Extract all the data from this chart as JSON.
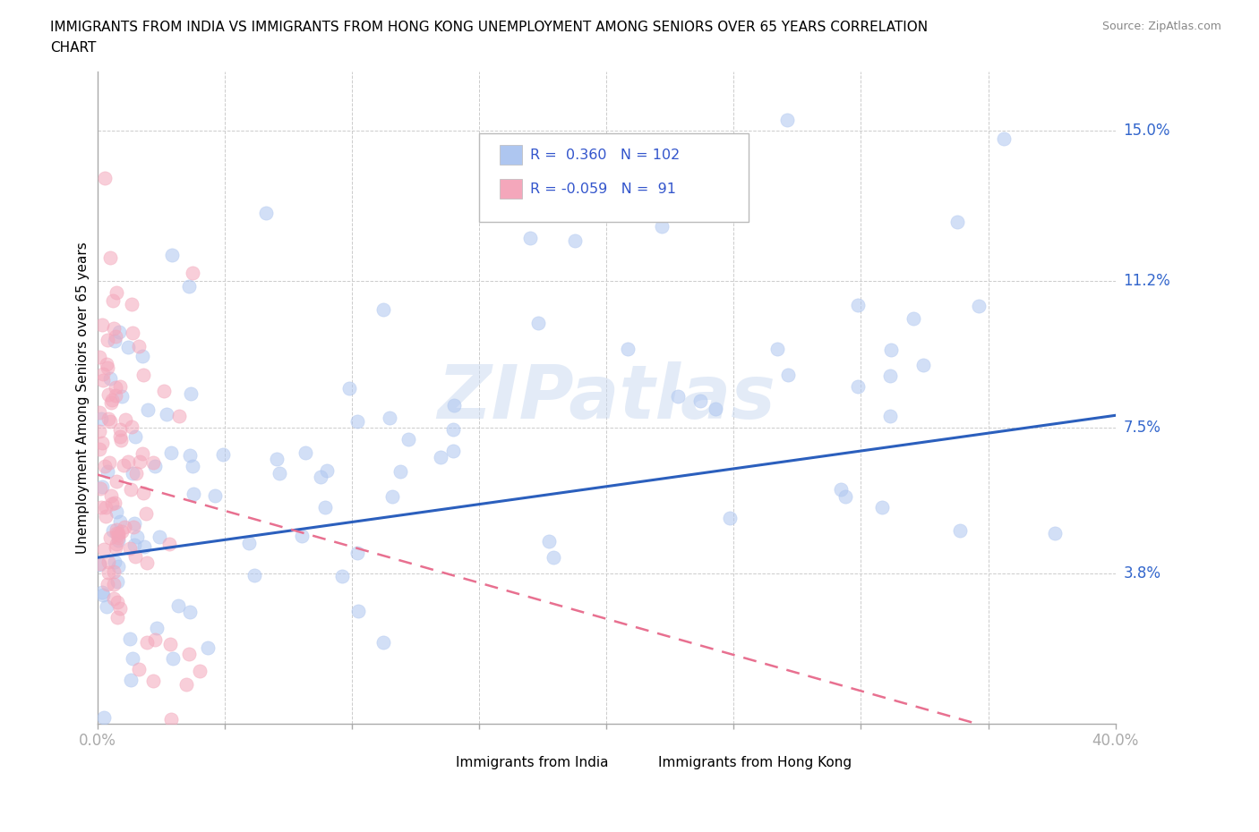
{
  "title_line1": "IMMIGRANTS FROM INDIA VS IMMIGRANTS FROM HONG KONG UNEMPLOYMENT AMONG SENIORS OVER 65 YEARS CORRELATION",
  "title_line2": "CHART",
  "source": "Source: ZipAtlas.com",
  "ylabel": "Unemployment Among Seniors over 65 years",
  "xlim": [
    0.0,
    0.4
  ],
  "ylim": [
    0.0,
    0.165
  ],
  "yticks": [
    0.0,
    0.038,
    0.075,
    0.112,
    0.15
  ],
  "ytick_labels": [
    "",
    "3.8%",
    "7.5%",
    "11.2%",
    "15.0%"
  ],
  "xticks": [
    0.0,
    0.05,
    0.1,
    0.15,
    0.2,
    0.25,
    0.3,
    0.35,
    0.4
  ],
  "xtick_labels": [
    "0.0%",
    "",
    "",
    "",
    "",
    "",
    "",
    "",
    "40.0%"
  ],
  "india_R": 0.36,
  "india_N": 102,
  "hk_R": -0.059,
  "hk_N": 91,
  "india_color": "#aec6f0",
  "hk_color": "#f4a7bb",
  "india_line_color": "#2b5fbd",
  "hk_line_color": "#e87090",
  "background_color": "#ffffff",
  "grid_color": "#cccccc",
  "watermark": "ZIPatlas",
  "legend_india_color": "#aec6f0",
  "legend_hk_color": "#f4a7bb"
}
